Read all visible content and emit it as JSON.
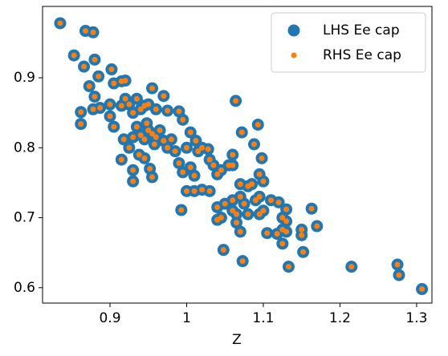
{
  "chart_data": {
    "type": "scatter",
    "xlabel": "Z",
    "x": [
      0.835,
      0.853,
      0.868,
      0.878,
      0.866,
      0.88,
      0.885,
      0.873,
      0.902,
      0.88,
      0.905,
      0.915,
      0.92,
      0.862,
      0.862,
      0.878,
      0.887,
      0.9,
      0.9,
      0.905,
      0.915,
      0.92,
      0.925,
      0.93,
      0.935,
      0.94,
      0.945,
      0.95,
      0.955,
      0.96,
      0.97,
      0.975,
      0.99,
      0.995,
      0.918,
      0.925,
      0.93,
      0.935,
      0.94,
      0.945,
      0.948,
      0.95,
      0.955,
      0.958,
      0.96,
      0.965,
      0.97,
      0.975,
      0.98,
      0.985,
      0.99,
      0.995,
      0.915,
      0.938,
      0.945,
      0.952,
      0.955,
      0.93,
      0.93,
      1.0,
      1.005,
      1.012,
      1.015,
      1.02,
      1.028,
      1.005,
      1.01,
      1.0,
      1.01,
      1.02,
      1.03,
      1.035,
      1.04,
      1.045,
      1.055,
      1.06,
      1.06,
      1.03,
      1.04,
      1.045,
      1.04,
      1.05,
      1.06,
      1.07,
      1.075,
      1.08,
      1.085,
      1.07,
      1.065,
      1.06,
      1.065,
      1.08,
      1.064,
      1.072,
      1.088,
      1.093,
      1.098,
      1.095,
      1.1,
      1.095,
      1.09,
      1.1,
      1.095,
      1.11,
      1.12,
      1.125,
      1.13,
      1.13,
      1.125,
      1.13,
      1.105,
      1.118,
      1.125,
      1.07,
      1.048,
      1.073,
      1.133,
      1.15,
      1.15,
      1.152,
      1.163,
      1.17,
      0.993,
      1.215,
      1.275,
      1.277,
      1.307
    ],
    "series": [
      {
        "name": "LHS Ee cap",
        "color": "#1f77b4",
        "marker_size": 7.5,
        "values": [
          0.978,
          0.932,
          0.967,
          0.965,
          0.916,
          0.926,
          0.902,
          0.888,
          0.912,
          0.873,
          0.892,
          0.895,
          0.896,
          0.851,
          0.834,
          0.855,
          0.857,
          0.862,
          0.845,
          0.83,
          0.86,
          0.87,
          0.862,
          0.85,
          0.87,
          0.855,
          0.86,
          0.862,
          0.885,
          0.855,
          0.874,
          0.853,
          0.852,
          0.84,
          0.812,
          0.8,
          0.815,
          0.83,
          0.818,
          0.812,
          0.835,
          0.825,
          0.82,
          0.805,
          0.815,
          0.825,
          0.81,
          0.8,
          0.812,
          0.795,
          0.778,
          0.765,
          0.783,
          0.79,
          0.785,
          0.77,
          0.758,
          0.768,
          0.752,
          0.8,
          0.822,
          0.81,
          0.795,
          0.8,
          0.798,
          0.772,
          0.76,
          0.738,
          0.738,
          0.74,
          0.783,
          0.775,
          0.762,
          0.768,
          0.775,
          0.79,
          0.775,
          0.738,
          0.715,
          0.7,
          0.697,
          0.72,
          0.725,
          0.73,
          0.72,
          0.745,
          0.748,
          0.748,
          0.705,
          0.71,
          0.693,
          0.705,
          0.867,
          0.822,
          0.805,
          0.833,
          0.785,
          0.762,
          0.752,
          0.73,
          0.725,
          0.71,
          0.705,
          0.725,
          0.722,
          0.7,
          0.712,
          0.695,
          0.683,
          0.68,
          0.678,
          0.677,
          0.663,
          0.68,
          0.654,
          0.638,
          0.63,
          0.683,
          0.675,
          0.651,
          0.713,
          0.688,
          0.711,
          0.63,
          0.633,
          0.618,
          0.598
        ]
      },
      {
        "name": "RHS Ee cap",
        "color": "#ff7f0e",
        "marker_size": 3.5,
        "values": [
          0.978,
          0.932,
          0.967,
          0.965,
          0.916,
          0.926,
          0.902,
          0.888,
          0.912,
          0.873,
          0.892,
          0.895,
          0.896,
          0.851,
          0.834,
          0.855,
          0.857,
          0.862,
          0.845,
          0.83,
          0.86,
          0.87,
          0.862,
          0.85,
          0.87,
          0.855,
          0.86,
          0.862,
          0.885,
          0.855,
          0.874,
          0.853,
          0.852,
          0.84,
          0.812,
          0.8,
          0.815,
          0.83,
          0.818,
          0.812,
          0.835,
          0.825,
          0.82,
          0.805,
          0.815,
          0.825,
          0.81,
          0.8,
          0.812,
          0.795,
          0.778,
          0.765,
          0.783,
          0.79,
          0.785,
          0.77,
          0.758,
          0.768,
          0.752,
          0.8,
          0.822,
          0.81,
          0.795,
          0.8,
          0.798,
          0.772,
          0.76,
          0.738,
          0.738,
          0.74,
          0.783,
          0.775,
          0.762,
          0.768,
          0.775,
          0.79,
          0.775,
          0.738,
          0.715,
          0.7,
          0.697,
          0.72,
          0.725,
          0.73,
          0.72,
          0.745,
          0.748,
          0.748,
          0.705,
          0.71,
          0.693,
          0.705,
          0.867,
          0.822,
          0.805,
          0.833,
          0.785,
          0.762,
          0.752,
          0.73,
          0.725,
          0.71,
          0.705,
          0.725,
          0.722,
          0.7,
          0.712,
          0.695,
          0.683,
          0.68,
          0.678,
          0.677,
          0.663,
          0.68,
          0.654,
          0.638,
          0.63,
          0.683,
          0.675,
          0.651,
          0.713,
          0.688,
          0.711,
          0.63,
          0.633,
          0.618,
          0.598
        ]
      }
    ],
    "xlim": [
      0.812,
      1.32
    ],
    "ylim": [
      0.578,
      1.002
    ],
    "xticks": [
      0.9,
      1.0,
      1.1,
      1.2,
      1.3
    ],
    "yticks": [
      0.6,
      0.7,
      0.8,
      0.9
    ],
    "legend": "upper right"
  }
}
